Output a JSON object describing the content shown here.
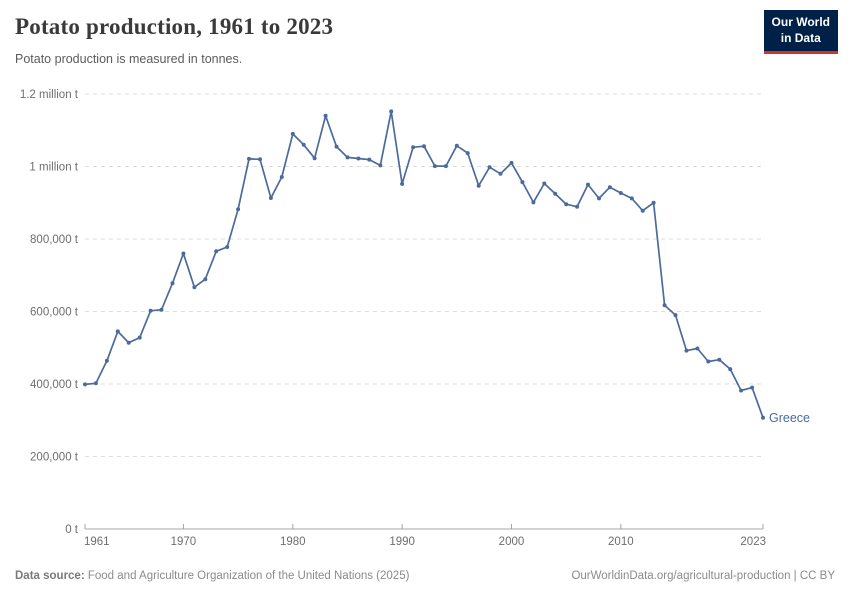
{
  "header": {
    "title": "Potato production, 1961 to 2023",
    "subtitle": "Potato production is measured in tonnes.",
    "logo": {
      "line1": "Our World",
      "line2": "in Data",
      "bg_color": "#002147",
      "accent_color": "#cf3425"
    }
  },
  "chart_data": {
    "type": "line",
    "title": "Potato production, 1961 to 2023",
    "ylabel": "",
    "xlabel": "",
    "unit": "tonnes",
    "xlim": [
      1961,
      2023
    ],
    "ylim": [
      0,
      1200000
    ],
    "grid": "horizontal-dashed",
    "legend_position": "end-of-line",
    "end_label": "Greece",
    "yticks": [
      {
        "value": 0,
        "label": "0 t"
      },
      {
        "value": 200000,
        "label": "200,000 t"
      },
      {
        "value": 400000,
        "label": "400,000 t"
      },
      {
        "value": 600000,
        "label": "600,000 t"
      },
      {
        "value": 800000,
        "label": "800,000 t"
      },
      {
        "value": 1000000,
        "label": "1 million t"
      },
      {
        "value": 1200000,
        "label": "1.2 million t"
      }
    ],
    "xticks": [
      {
        "year": 1961,
        "label": "1961"
      },
      {
        "year": 1970,
        "label": "1970"
      },
      {
        "year": 1980,
        "label": "1980"
      },
      {
        "year": 1990,
        "label": "1990"
      },
      {
        "year": 2000,
        "label": "2000"
      },
      {
        "year": 2010,
        "label": "2010"
      },
      {
        "year": 2023,
        "label": "2023"
      }
    ],
    "series": [
      {
        "name": "Greece",
        "color": "#4C6A9C",
        "x": [
          1961,
          1962,
          1963,
          1964,
          1965,
          1966,
          1967,
          1968,
          1969,
          1970,
          1971,
          1972,
          1973,
          1974,
          1975,
          1976,
          1977,
          1978,
          1979,
          1980,
          1981,
          1982,
          1983,
          1984,
          1985,
          1986,
          1987,
          1988,
          1989,
          1990,
          1991,
          1992,
          1993,
          1994,
          1995,
          1996,
          1997,
          1998,
          1999,
          2000,
          2001,
          2002,
          2003,
          2004,
          2005,
          2006,
          2007,
          2008,
          2009,
          2010,
          2011,
          2012,
          2013,
          2014,
          2015,
          2016,
          2017,
          2018,
          2019,
          2020,
          2021,
          2022,
          2023
        ],
        "values": [
          399000,
          402000,
          464000,
          545000,
          514000,
          528000,
          602000,
          605000,
          678000,
          760000,
          667000,
          689000,
          766000,
          778000,
          882000,
          1021000,
          1020000,
          913000,
          971000,
          1090000,
          1060000,
          1023000,
          1140000,
          1055000,
          1025000,
          1022000,
          1019000,
          1003000,
          1152000,
          952000,
          1053000,
          1056000,
          1001000,
          1001000,
          1057000,
          1037000,
          947000,
          998000,
          980000,
          1010000,
          957000,
          901000,
          953000,
          925000,
          896000,
          889000,
          950000,
          912000,
          943000,
          927000,
          912000,
          878000,
          900000,
          617000,
          590000,
          492000,
          498000,
          462000,
          467000,
          441000,
          382000,
          390000,
          307000
        ]
      }
    ]
  },
  "footer": {
    "datasource_label": "Data source:",
    "datasource_text": " Food and Agriculture Organization of the United Nations (2025)",
    "attribution": "OurWorldinData.org/agricultural-production | CC BY"
  }
}
